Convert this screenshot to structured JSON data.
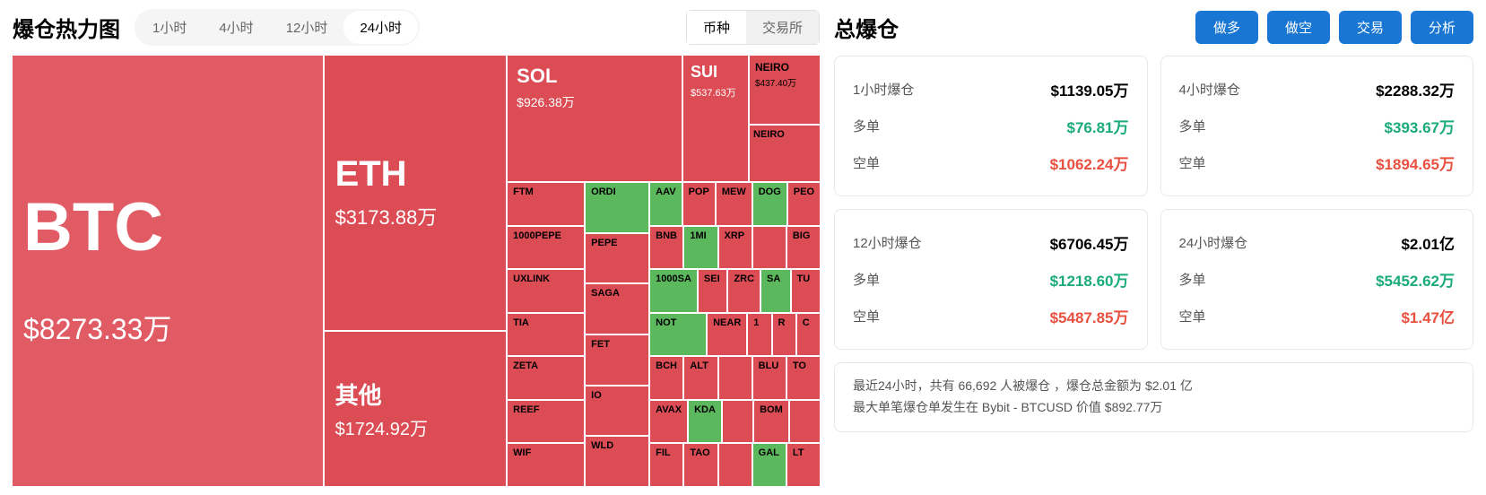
{
  "leftTitle": "爆仓热力图",
  "timeTabs": [
    "1小时",
    "4小时",
    "12小时",
    "24小时"
  ],
  "timeActive": 3,
  "typeTabs": [
    "币种",
    "交易所"
  ],
  "typeActive": 0,
  "treemap": {
    "btc": {
      "sym": "BTC",
      "val": "$8273.33万"
    },
    "eth": {
      "sym": "ETH",
      "val": "$3173.88万"
    },
    "other": {
      "sym": "其他",
      "val": "$1724.92万"
    },
    "sol": {
      "sym": "SOL",
      "val": "$926.38万"
    },
    "sui": {
      "sym": "SUI",
      "val": "$537.63万"
    },
    "neiro1": {
      "sym": "NEIRO",
      "val": "$437.40万"
    },
    "neiro2": {
      "sym": "NEIRO"
    },
    "leftCol": [
      "FTM",
      "1000PEPE",
      "UXLINK",
      "TIA",
      "ZETA",
      "REEF",
      "WIF"
    ],
    "midCol": [
      "ORDI",
      "PEPE",
      "SAGA",
      "FET",
      "IO",
      "WLD"
    ],
    "r1": [
      "AAV",
      "POP",
      "MEW",
      "DOG",
      "PEO"
    ],
    "r2": [
      "BNB",
      "1MI",
      "XRP",
      "",
      "BIG"
    ],
    "r3": [
      "1000SA",
      "SEI",
      "ZRC",
      "SA",
      "TU"
    ],
    "r4a": "NOT",
    "r4b": [
      "NEAR",
      "1",
      "R",
      "C"
    ],
    "r5": [
      "BCH",
      "ALT",
      "",
      "BLU",
      "TO"
    ],
    "r6": [
      "AVAX",
      "KDA",
      "",
      "BOM",
      ""
    ],
    "r7": [
      "FIL",
      "TAO",
      "",
      "GAL",
      "LT"
    ],
    "greenIdx": {
      "r1": [
        0,
        3
      ],
      "r2": [
        1
      ],
      "r3": [
        0,
        3
      ],
      "r4a": true,
      "r6": [
        1
      ],
      "r7": [
        3
      ]
    }
  },
  "rightTitle": "总爆仓",
  "actions": [
    "做多",
    "做空",
    "交易",
    "分析"
  ],
  "cards": [
    {
      "title": "1小时爆仓",
      "total": "$1139.05万",
      "long": "$76.81万",
      "short": "$1062.24万"
    },
    {
      "title": "4小时爆仓",
      "total": "$2288.32万",
      "long": "$393.67万",
      "short": "$1894.65万"
    },
    {
      "title": "12小时爆仓",
      "total": "$6706.45万",
      "long": "$1218.60万",
      "short": "$5487.85万"
    },
    {
      "title": "24小时爆仓",
      "total": "$2.01亿",
      "long": "$5452.62万",
      "short": "$1.47亿"
    }
  ],
  "labels": {
    "long": "多单",
    "short": "空单"
  },
  "note1": "最近24小时，共有 66,692 人被爆仓 ，爆仓总金额为 $2.01 亿",
  "note2": "最大单笔爆仓单发生在 Bybit - BTCUSD 价值 $892.77万"
}
